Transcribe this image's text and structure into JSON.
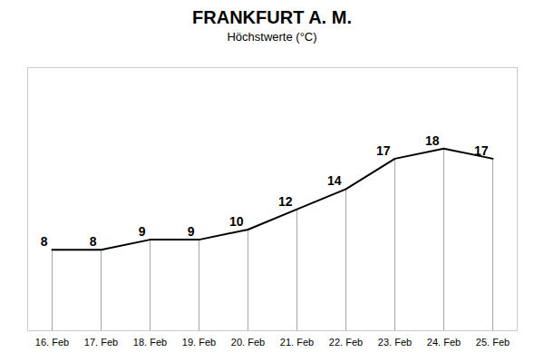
{
  "chart_data": {
    "type": "line",
    "title": "FRANKFURT A. M.",
    "subtitle": "Höchstwerte (°C)",
    "categories": [
      "16. Feb",
      "17. Feb",
      "18. Feb",
      "19. Feb",
      "20. Feb",
      "21. Feb",
      "22. Feb",
      "23. Feb",
      "24. Feb",
      "25. Feb"
    ],
    "values": [
      8,
      8,
      9,
      9,
      10,
      12,
      14,
      17,
      18,
      17
    ],
    "ylim": [
      0,
      26
    ],
    "grid": false,
    "data_labels": true,
    "tick_labels": "x"
  }
}
